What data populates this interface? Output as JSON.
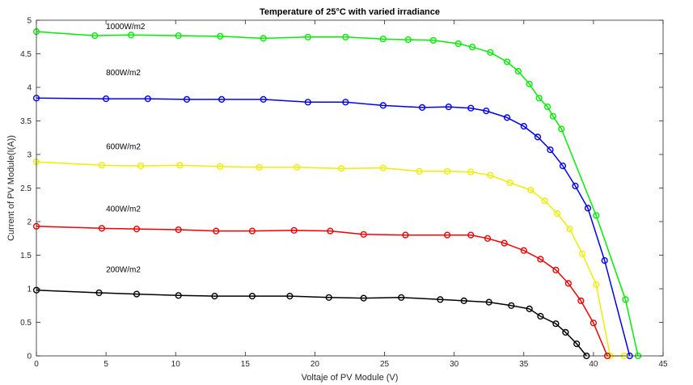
{
  "chart_data": {
    "type": "line",
    "title": "Temperature of 25°C with varied irradiance",
    "xlabel": "Voltaje of PV Module (V)",
    "ylabel": "Current of PV Module(I(A))",
    "xlim": [
      0,
      45
    ],
    "ylim": [
      0,
      5
    ],
    "xticks": [
      0,
      5,
      10,
      15,
      20,
      25,
      30,
      35,
      40,
      45
    ],
    "yticks": [
      0,
      0.5,
      1,
      1.5,
      2,
      2.5,
      3,
      3.5,
      4,
      4.5,
      5
    ],
    "grid": false,
    "annotations": [
      {
        "text": "1000W/m2",
        "x": 5.0,
        "y": 4.87
      },
      {
        "text": "800W/m2",
        "x": 5.0,
        "y": 4.18
      },
      {
        "text": "600W/m2",
        "x": 5.0,
        "y": 3.08
      },
      {
        "text": "400W/m2",
        "x": 5.0,
        "y": 2.15
      },
      {
        "text": "200W/m2",
        "x": 5.0,
        "y": 1.25
      }
    ],
    "series": [
      {
        "color": "#00ee00",
        "x": [
          0,
          4.2,
          6.8,
          10.2,
          13.2,
          16.3,
          19.5,
          22.2,
          24.9,
          26.7,
          28.5,
          30.3,
          31.3,
          32.6,
          33.8,
          34.6,
          35.4,
          36.1,
          36.7,
          37.1,
          37.7,
          40.2,
          42.3,
          43.2
        ],
        "y": [
          4.83,
          4.77,
          4.78,
          4.77,
          4.76,
          4.73,
          4.75,
          4.75,
          4.72,
          4.71,
          4.7,
          4.65,
          4.6,
          4.52,
          4.38,
          4.24,
          4.05,
          3.84,
          3.71,
          3.57,
          3.38,
          2.09,
          0.84,
          0.0
        ]
      },
      {
        "color": "#0000ee",
        "x": [
          0,
          5.0,
          8.0,
          10.8,
          13.3,
          16.3,
          19.5,
          22.2,
          24.9,
          27.7,
          29.6,
          31.2,
          32.3,
          33.8,
          35.0,
          36.0,
          36.9,
          37.8,
          38.7,
          39.6,
          40.8,
          42.6
        ],
        "y": [
          3.84,
          3.83,
          3.83,
          3.82,
          3.82,
          3.82,
          3.78,
          3.78,
          3.73,
          3.7,
          3.71,
          3.69,
          3.65,
          3.55,
          3.42,
          3.26,
          3.07,
          2.83,
          2.53,
          2.2,
          1.42,
          0.0
        ]
      },
      {
        "color": "#eeee00",
        "x": [
          0,
          4.7,
          7.5,
          10.3,
          13.2,
          16.0,
          18.7,
          21.9,
          24.9,
          27.5,
          29.5,
          31.2,
          32.6,
          34.0,
          35.5,
          36.5,
          37.4,
          38.3,
          39.2,
          40.2,
          41.2,
          42.2
        ],
        "y": [
          2.89,
          2.84,
          2.83,
          2.84,
          2.82,
          2.81,
          2.81,
          2.79,
          2.8,
          2.75,
          2.75,
          2.74,
          2.69,
          2.58,
          2.47,
          2.31,
          2.12,
          1.89,
          1.52,
          1.06,
          0.0,
          0.0
        ]
      },
      {
        "color": "#ee0000",
        "x": [
          0,
          4.7,
          7.2,
          10.2,
          12.9,
          15.5,
          18.5,
          21.1,
          23.5,
          26.5,
          29.5,
          31.2,
          32.4,
          33.6,
          35.0,
          36.2,
          37.3,
          38.2,
          39.1,
          40.0,
          41.0
        ],
        "y": [
          1.93,
          1.9,
          1.89,
          1.88,
          1.86,
          1.86,
          1.87,
          1.86,
          1.81,
          1.8,
          1.8,
          1.8,
          1.75,
          1.68,
          1.57,
          1.44,
          1.28,
          1.08,
          0.82,
          0.49,
          0.0
        ]
      },
      {
        "color": "#000000",
        "x": [
          0,
          4.5,
          7.2,
          10.2,
          12.8,
          15.5,
          18.2,
          21.0,
          23.5,
          26.2,
          29.0,
          30.7,
          32.5,
          34.1,
          35.4,
          36.2,
          37.3,
          38.0,
          38.8,
          39.5
        ],
        "y": [
          0.98,
          0.94,
          0.92,
          0.9,
          0.89,
          0.89,
          0.89,
          0.87,
          0.86,
          0.87,
          0.84,
          0.82,
          0.8,
          0.75,
          0.7,
          0.59,
          0.48,
          0.35,
          0.18,
          0.0
        ]
      }
    ]
  }
}
